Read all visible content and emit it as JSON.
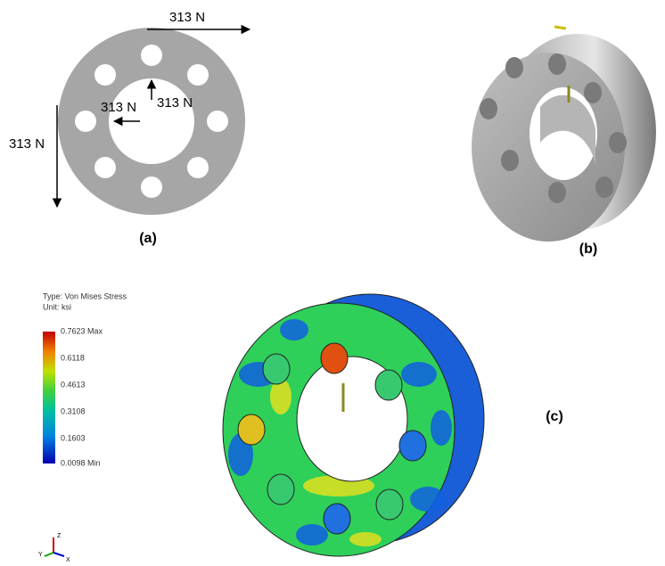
{
  "panel_a": {
    "forces": [
      "313 N",
      "313 N",
      "313 N",
      "313 N"
    ],
    "caption": "(a)"
  },
  "panel_b": {
    "caption": "(b)"
  },
  "panel_c": {
    "legend_type": "Type: Von Mises Stress",
    "legend_unit": "Unit: ksi",
    "legend_labels": [
      "0.7623 Max",
      "0.6118",
      "0.4613",
      "0.3108",
      "0.1603",
      "0.0098 Min"
    ],
    "triad": [
      "Z",
      "X",
      "Y"
    ],
    "caption": "(c)"
  }
}
